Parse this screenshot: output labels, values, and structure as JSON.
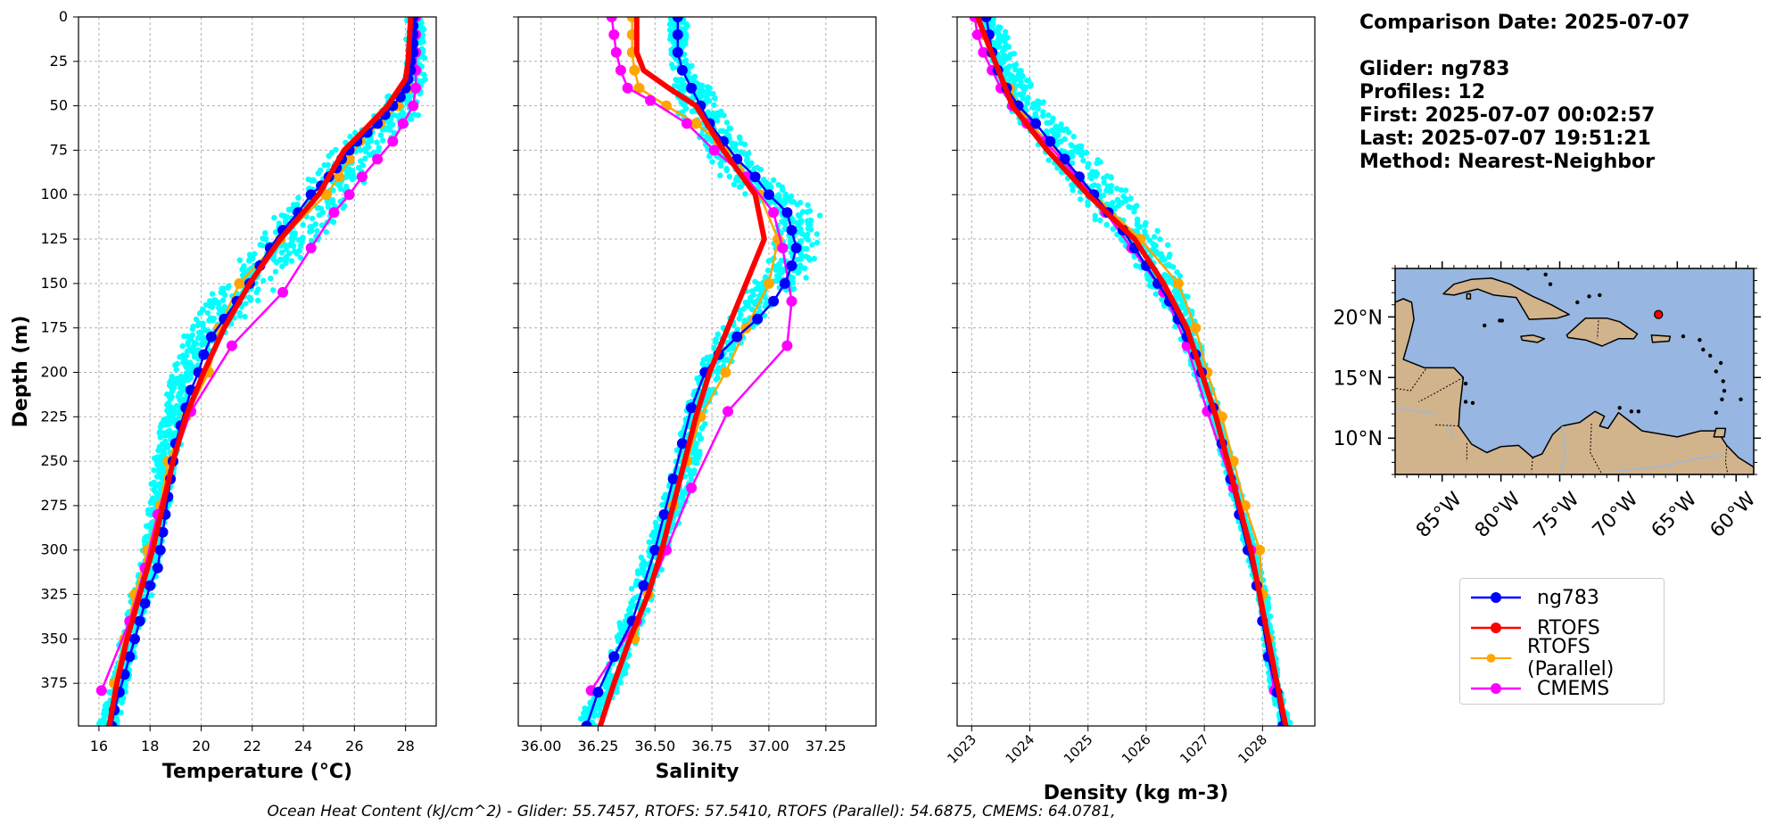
{
  "info": {
    "comparison_date": "Comparison Date: 2025-07-07",
    "glider": "Glider: ng783",
    "profiles": "Profiles: 12",
    "first": "First: 2025-07-07 00:02:57",
    "last": "Last: 2025-07-07 19:51:21",
    "method": "Method: Nearest-Neighbor"
  },
  "caption": "Ocean Heat Content (kJ/cm^2) - Glider: 55.7457,  RTOFS: 57.5410,  RTOFS (Parallel): 54.6875,  CMEMS: 64.0781,",
  "legend": [
    {
      "label": "ng783",
      "color": "#0000ff"
    },
    {
      "label": "RTOFS",
      "color": "#ff0000"
    },
    {
      "label": "RTOFS (Parallel)",
      "color": "#ffa500"
    },
    {
      "label": "CMEMS",
      "color": "#ff00ff"
    }
  ],
  "colors": {
    "glider_scatter": "#00ffff",
    "ng783": "#0000ff",
    "rtofs": "#ff0000",
    "rtofs_parallel": "#ffa500",
    "cmems": "#ff00ff",
    "ocean": "#97b6e1",
    "land": "#d2b48c",
    "glider_marker": "#ff0000"
  },
  "chart_data": [
    {
      "type": "line",
      "panel": "temperature",
      "xlabel": "Temperature (°C)",
      "ylabel": "Depth (m)",
      "xlim": [
        15.2,
        29.2
      ],
      "ylim": [
        399,
        0
      ],
      "xticks": [
        16,
        18,
        20,
        22,
        24,
        26,
        28
      ],
      "yticks": [
        0,
        25,
        50,
        75,
        100,
        125,
        150,
        175,
        200,
        225,
        250,
        275,
        300,
        325,
        350,
        375
      ],
      "grid": true,
      "glider_scatter_band": {
        "depth": [
          0,
          25,
          40,
          50,
          60,
          75,
          100,
          125,
          150,
          175,
          200,
          225,
          250,
          275,
          300,
          325,
          350,
          375,
          399
        ],
        "min": [
          28.0,
          28.0,
          27.6,
          26.9,
          26.0,
          24.9,
          23.6,
          22.0,
          20.6,
          19.3,
          18.7,
          18.4,
          18.1,
          17.9,
          17.6,
          17.2,
          16.8,
          16.5,
          15.9
        ],
        "max": [
          28.8,
          28.8,
          28.8,
          28.8,
          28.5,
          27.2,
          26.1,
          24.9,
          23.2,
          21.3,
          19.9,
          19.5,
          19.1,
          18.8,
          18.5,
          18.1,
          17.6,
          17.2,
          16.8
        ]
      },
      "series": [
        {
          "name": "ng783",
          "depth": [
            0,
            5,
            10,
            15,
            20,
            25,
            30,
            35,
            40,
            45,
            50,
            55,
            60,
            65,
            70,
            75,
            80,
            85,
            90,
            95,
            100,
            110,
            120,
            130,
            140,
            150,
            160,
            170,
            180,
            190,
            200,
            210,
            220,
            230,
            240,
            250,
            260,
            270,
            280,
            290,
            300,
            310,
            320,
            330,
            340,
            350,
            360,
            370,
            380,
            390,
            399
          ],
          "values": [
            28.3,
            28.3,
            28.3,
            28.3,
            28.3,
            28.2,
            28.2,
            28.1,
            28.0,
            27.8,
            27.5,
            27.2,
            26.9,
            26.5,
            26.1,
            25.8,
            25.5,
            25.3,
            25.0,
            24.7,
            24.3,
            23.8,
            23.2,
            22.7,
            22.3,
            21.9,
            21.4,
            20.9,
            20.4,
            20.1,
            19.9,
            19.6,
            19.4,
            19.2,
            19.0,
            18.9,
            18.8,
            18.7,
            18.6,
            18.5,
            18.4,
            18.3,
            18.0,
            17.8,
            17.6,
            17.4,
            17.2,
            17.0,
            16.8,
            16.6,
            16.5
          ]
        },
        {
          "name": "RTOFS",
          "depth": [
            0,
            25,
            35,
            50,
            65,
            75,
            100,
            125,
            150,
            175,
            200,
            225,
            250,
            275,
            300,
            325,
            350,
            375,
            399
          ],
          "values": [
            28.2,
            28.1,
            28.0,
            27.3,
            26.3,
            25.6,
            24.6,
            23.1,
            21.9,
            20.9,
            20.1,
            19.4,
            18.9,
            18.5,
            18.1,
            17.6,
            17.1,
            16.7,
            16.4
          ]
        },
        {
          "name": "RTOFS (Parallel)",
          "depth": [
            0,
            10,
            20,
            30,
            40,
            50,
            60,
            70,
            80,
            90,
            100,
            125,
            150,
            175,
            200,
            225,
            250,
            275,
            300,
            325,
            350,
            375
          ],
          "values": [
            28.3,
            28.3,
            28.3,
            28.3,
            28.1,
            27.7,
            27.0,
            26.2,
            25.8,
            25.4,
            24.9,
            23.1,
            21.5,
            20.7,
            20.3,
            19.4,
            18.7,
            18.4,
            17.9,
            17.4,
            17.0,
            16.6
          ]
        },
        {
          "name": "CMEMS",
          "depth": [
            0,
            10,
            20,
            30,
            40,
            50,
            60,
            70,
            80,
            90,
            100,
            110,
            130,
            155,
            185,
            222,
            250,
            280,
            310,
            340,
            379
          ],
          "values": [
            28.4,
            28.4,
            28.4,
            28.4,
            28.4,
            28.3,
            27.9,
            27.5,
            26.9,
            26.3,
            25.8,
            25.2,
            24.3,
            23.2,
            21.2,
            19.6,
            18.9,
            18.3,
            17.8,
            17.2,
            16.1
          ]
        }
      ]
    },
    {
      "type": "line",
      "panel": "salinity",
      "xlabel": "Salinity",
      "xlim": [
        35.9,
        37.47
      ],
      "ylim": [
        399,
        0
      ],
      "xticks": [
        36.0,
        36.25,
        36.5,
        36.75,
        37.0,
        37.25
      ],
      "xticklabels": [
        "36.00",
        "36.25",
        "36.50",
        "36.75",
        "37.00",
        "37.25"
      ],
      "grid": true,
      "glider_scatter_band": {
        "depth": [
          0,
          25,
          50,
          75,
          90,
          100,
          110,
          125,
          140,
          150,
          160,
          175,
          200,
          225,
          250,
          275,
          300,
          325,
          350,
          375,
          399
        ],
        "min": [
          36.56,
          36.56,
          36.58,
          36.68,
          36.78,
          36.88,
          36.98,
          37.0,
          36.98,
          36.92,
          36.86,
          36.78,
          36.68,
          36.62,
          36.58,
          36.52,
          36.45,
          36.38,
          36.32,
          36.25,
          36.14
        ],
        "max": [
          36.65,
          36.65,
          36.82,
          36.93,
          37.0,
          37.15,
          37.23,
          37.23,
          37.2,
          37.15,
          37.06,
          36.95,
          36.8,
          36.74,
          36.7,
          36.64,
          36.57,
          36.5,
          36.43,
          36.36,
          36.25
        ]
      },
      "series": [
        {
          "name": "ng783",
          "depth": [
            0,
            10,
            20,
            30,
            40,
            50,
            60,
            70,
            80,
            90,
            100,
            110,
            120,
            130,
            140,
            150,
            160,
            170,
            180,
            190,
            200,
            220,
            240,
            260,
            280,
            300,
            320,
            340,
            360,
            380,
            399
          ],
          "values": [
            36.6,
            36.6,
            36.6,
            36.62,
            36.66,
            36.7,
            36.74,
            36.8,
            36.86,
            36.94,
            37.0,
            37.08,
            37.1,
            37.12,
            37.1,
            37.07,
            37.02,
            36.95,
            36.86,
            36.78,
            36.72,
            36.66,
            36.62,
            36.58,
            36.54,
            36.5,
            36.45,
            36.4,
            36.32,
            36.25,
            36.2
          ]
        },
        {
          "name": "RTOFS",
          "depth": [
            0,
            20,
            30,
            40,
            50,
            75,
            100,
            125,
            150,
            175,
            200,
            225,
            250,
            275,
            300,
            325,
            350,
            375,
            399
          ],
          "values": [
            36.42,
            36.42,
            36.45,
            36.56,
            36.68,
            36.8,
            36.94,
            36.98,
            36.9,
            36.82,
            36.74,
            36.68,
            36.63,
            36.58,
            36.53,
            36.47,
            36.39,
            36.32,
            36.26
          ]
        },
        {
          "name": "RTOFS (Parallel)",
          "depth": [
            0,
            10,
            20,
            30,
            40,
            50,
            60,
            70,
            80,
            90,
            100,
            125,
            150,
            175,
            200,
            225,
            250,
            275,
            300,
            325,
            350
          ],
          "values": [
            36.4,
            36.4,
            36.4,
            36.41,
            36.43,
            36.55,
            36.68,
            36.78,
            36.86,
            36.9,
            36.96,
            37.04,
            37.0,
            36.9,
            36.81,
            36.7,
            36.64,
            36.58,
            36.53,
            36.47,
            36.41
          ]
        },
        {
          "name": "CMEMS",
          "depth": [
            0,
            10,
            20,
            30,
            40,
            47,
            60,
            75,
            90,
            110,
            130,
            160,
            185,
            222,
            265,
            300,
            340,
            379
          ],
          "values": [
            36.31,
            36.32,
            36.33,
            36.35,
            36.38,
            36.48,
            36.64,
            36.76,
            36.9,
            37.02,
            37.06,
            37.1,
            37.08,
            36.82,
            36.66,
            36.55,
            36.42,
            36.22
          ]
        }
      ]
    },
    {
      "type": "line",
      "panel": "density",
      "xlabel": "Density (kg m-3)",
      "xlim": [
        1022.75,
        1028.9
      ],
      "ylim": [
        399,
        0
      ],
      "xticks": [
        1023,
        1024,
        1025,
        1026,
        1027,
        1028
      ],
      "xticklabels": [
        "1023",
        "1024",
        "1025",
        "1026",
        "1027",
        "1028"
      ],
      "grid": true,
      "glider_scatter_band": {
        "depth": [
          0,
          25,
          50,
          75,
          100,
          125,
          150,
          175,
          200,
          225,
          250,
          275,
          300,
          325,
          350,
          375,
          399
        ],
        "min": [
          1023.1,
          1023.3,
          1023.6,
          1024.1,
          1024.7,
          1025.4,
          1026.0,
          1026.5,
          1026.8,
          1027.1,
          1027.3,
          1027.5,
          1027.7,
          1027.9,
          1028.0,
          1028.1,
          1028.3
        ],
        "max": [
          1023.5,
          1023.8,
          1024.3,
          1025.1,
          1025.8,
          1026.4,
          1026.7,
          1026.9,
          1027.1,
          1027.3,
          1027.5,
          1027.7,
          1027.9,
          1028.1,
          1028.2,
          1028.3,
          1028.5
        ]
      },
      "series": [
        {
          "name": "ng783",
          "depth": [
            0,
            10,
            20,
            30,
            40,
            50,
            60,
            70,
            80,
            90,
            100,
            110,
            120,
            130,
            140,
            150,
            160,
            170,
            180,
            190,
            200,
            220,
            240,
            260,
            280,
            300,
            320,
            340,
            360,
            380,
            399
          ],
          "values": [
            1023.25,
            1023.3,
            1023.35,
            1023.45,
            1023.6,
            1023.8,
            1024.1,
            1024.35,
            1024.6,
            1024.85,
            1025.1,
            1025.35,
            1025.6,
            1025.8,
            1026.0,
            1026.2,
            1026.4,
            1026.55,
            1026.7,
            1026.85,
            1026.95,
            1027.15,
            1027.3,
            1027.45,
            1027.6,
            1027.75,
            1027.9,
            1028.0,
            1028.1,
            1028.25,
            1028.35
          ]
        },
        {
          "name": "RTOFS",
          "depth": [
            0,
            25,
            50,
            75,
            100,
            125,
            150,
            175,
            200,
            225,
            250,
            275,
            300,
            325,
            350,
            375,
            399
          ],
          "values": [
            1023.1,
            1023.4,
            1023.7,
            1024.3,
            1025.0,
            1025.8,
            1026.3,
            1026.7,
            1026.95,
            1027.2,
            1027.4,
            1027.6,
            1027.8,
            1027.95,
            1028.1,
            1028.25,
            1028.4
          ]
        },
        {
          "name": "RTOFS (Parallel)",
          "depth": [
            0,
            10,
            20,
            30,
            40,
            50,
            60,
            70,
            80,
            90,
            100,
            125,
            150,
            175,
            200,
            225,
            250,
            275,
            300,
            325,
            350
          ],
          "values": [
            1023.15,
            1023.2,
            1023.3,
            1023.45,
            1023.65,
            1023.8,
            1024.0,
            1024.3,
            1024.6,
            1024.85,
            1025.1,
            1025.9,
            1026.55,
            1026.85,
            1027.05,
            1027.3,
            1027.5,
            1027.7,
            1027.95,
            1028.0,
            1028.1
          ]
        },
        {
          "name": "CMEMS",
          "depth": [
            0,
            10,
            20,
            30,
            40,
            50,
            60,
            70,
            80,
            90,
            100,
            110,
            130,
            155,
            185,
            222,
            265,
            300,
            340,
            379
          ],
          "values": [
            1023.05,
            1023.1,
            1023.2,
            1023.35,
            1023.5,
            1023.7,
            1023.95,
            1024.25,
            1024.55,
            1024.8,
            1025.05,
            1025.3,
            1025.75,
            1026.3,
            1026.7,
            1027.05,
            1027.5,
            1027.8,
            1028.0,
            1028.2
          ]
        }
      ]
    },
    {
      "type": "map",
      "panel": "location",
      "lon_range": [
        -89,
        -58.5
      ],
      "lat_range": [
        7,
        24
      ],
      "lon_ticks": [
        -85,
        -80,
        -75,
        -70,
        -65,
        -60
      ],
      "lon_ticklabels": [
        "85°W",
        "80°W",
        "75°W",
        "70°W",
        "65°W",
        "60°W"
      ],
      "lat_ticks": [
        10,
        15,
        20
      ],
      "lat_ticklabels": [
        "10°N",
        "15°N",
        "20°N"
      ],
      "glider_position": {
        "lon": -66.6,
        "lat": 20.2
      }
    }
  ]
}
